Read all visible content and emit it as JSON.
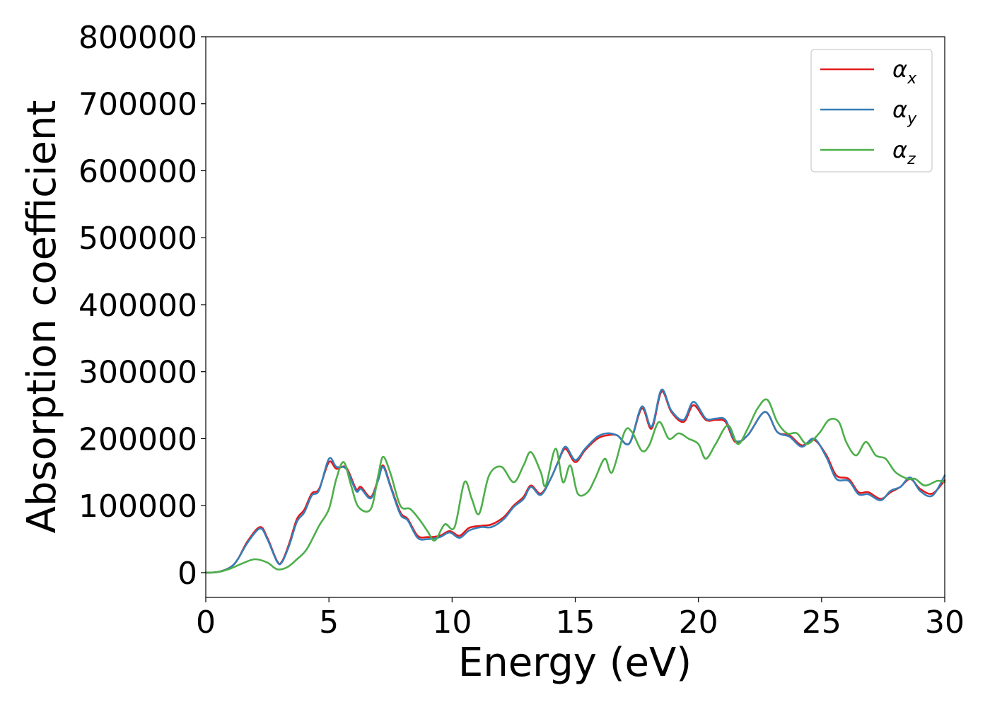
{
  "chart_data": {
    "type": "line",
    "title": "",
    "xlabel": "Energy (eV)",
    "ylabel": "Absorption coefficient",
    "xlim": [
      0,
      30
    ],
    "ylim": [
      -37000,
      800000
    ],
    "xticks": [
      0,
      5,
      10,
      15,
      20,
      25,
      30
    ],
    "xtick_labels": [
      "0",
      "5",
      "10",
      "15",
      "20",
      "25",
      "30"
    ],
    "yticks": [
      0,
      100000,
      200000,
      300000,
      400000,
      500000,
      600000,
      700000,
      800000
    ],
    "ytick_labels": [
      "0",
      "100000",
      "200000",
      "300000",
      "400000",
      "500000",
      "600000",
      "700000",
      "800000"
    ],
    "grid": false,
    "legend": {
      "position": "top-right"
    },
    "series": [
      {
        "name": "αx",
        "label_base": "α",
        "label_sub": "x",
        "color": "#e41a1c",
        "points": [
          [
            0,
            0
          ],
          [
            0.5,
            1000
          ],
          [
            1,
            8000
          ],
          [
            1.3,
            20000
          ],
          [
            1.7,
            47000
          ],
          [
            2.2,
            68000
          ],
          [
            2.5,
            52000
          ],
          [
            2.9,
            17000
          ],
          [
            3.1,
            17000
          ],
          [
            3.4,
            45000
          ],
          [
            3.7,
            80000
          ],
          [
            4.0,
            94000
          ],
          [
            4.3,
            118000
          ],
          [
            4.6,
            125000
          ],
          [
            5.0,
            165000
          ],
          [
            5.3,
            155000
          ],
          [
            5.7,
            157000
          ],
          [
            6.1,
            125000
          ],
          [
            6.3,
            128000
          ],
          [
            6.7,
            113000
          ],
          [
            7.0,
            140000
          ],
          [
            7.2,
            160000
          ],
          [
            7.5,
            130000
          ],
          [
            7.9,
            90000
          ],
          [
            8.2,
            80000
          ],
          [
            8.6,
            55000
          ],
          [
            9.0,
            53000
          ],
          [
            9.5,
            55000
          ],
          [
            9.9,
            62000
          ],
          [
            10.3,
            55000
          ],
          [
            10.7,
            67000
          ],
          [
            11.2,
            70000
          ],
          [
            11.6,
            72000
          ],
          [
            12.1,
            83000
          ],
          [
            12.5,
            100000
          ],
          [
            12.9,
            113000
          ],
          [
            13.2,
            130000
          ],
          [
            13.6,
            118000
          ],
          [
            14.0,
            140000
          ],
          [
            14.3,
            165000
          ],
          [
            14.6,
            185000
          ],
          [
            15.0,
            165000
          ],
          [
            15.4,
            183000
          ],
          [
            15.9,
            200000
          ],
          [
            16.3,
            205000
          ],
          [
            16.7,
            205000
          ],
          [
            17.2,
            193000
          ],
          [
            17.7,
            245000
          ],
          [
            18.1,
            215000
          ],
          [
            18.5,
            270000
          ],
          [
            18.9,
            240000
          ],
          [
            19.4,
            225000
          ],
          [
            19.8,
            250000
          ],
          [
            20.3,
            228000
          ],
          [
            20.7,
            228000
          ],
          [
            21.1,
            225000
          ],
          [
            21.5,
            195000
          ],
          [
            22.0,
            205000
          ],
          [
            22.7,
            240000
          ],
          [
            23.2,
            210000
          ],
          [
            23.7,
            205000
          ],
          [
            24.2,
            190000
          ],
          [
            24.7,
            198000
          ],
          [
            25.2,
            175000
          ],
          [
            25.6,
            145000
          ],
          [
            26.1,
            140000
          ],
          [
            26.5,
            120000
          ],
          [
            26.9,
            120000
          ],
          [
            27.4,
            110000
          ],
          [
            27.8,
            120000
          ],
          [
            28.2,
            128000
          ],
          [
            28.6,
            140000
          ],
          [
            29.0,
            125000
          ],
          [
            29.5,
            118000
          ],
          [
            30.0,
            138000
          ]
        ]
      },
      {
        "name": "αy",
        "label_base": "α",
        "label_sub": "y",
        "color": "#377eb8",
        "points": [
          [
            0,
            0
          ],
          [
            0.5,
            1000
          ],
          [
            1,
            8000
          ],
          [
            1.3,
            20000
          ],
          [
            1.7,
            45000
          ],
          [
            2.2,
            66000
          ],
          [
            2.5,
            50000
          ],
          [
            2.9,
            16000
          ],
          [
            3.1,
            16000
          ],
          [
            3.4,
            42000
          ],
          [
            3.7,
            76000
          ],
          [
            4.0,
            90000
          ],
          [
            4.3,
            115000
          ],
          [
            4.6,
            123000
          ],
          [
            5.0,
            170000
          ],
          [
            5.3,
            158000
          ],
          [
            5.7,
            155000
          ],
          [
            6.1,
            122000
          ],
          [
            6.3,
            125000
          ],
          [
            6.7,
            111000
          ],
          [
            7.0,
            138000
          ],
          [
            7.2,
            158000
          ],
          [
            7.5,
            128000
          ],
          [
            7.9,
            87000
          ],
          [
            8.2,
            78000
          ],
          [
            8.6,
            52000
          ],
          [
            9.0,
            50000
          ],
          [
            9.5,
            53000
          ],
          [
            9.9,
            60000
          ],
          [
            10.3,
            52000
          ],
          [
            10.7,
            63000
          ],
          [
            11.2,
            68000
          ],
          [
            11.6,
            68000
          ],
          [
            12.1,
            80000
          ],
          [
            12.5,
            98000
          ],
          [
            12.9,
            110000
          ],
          [
            13.2,
            128000
          ],
          [
            13.6,
            116000
          ],
          [
            14.0,
            140000
          ],
          [
            14.3,
            165000
          ],
          [
            14.6,
            188000
          ],
          [
            15.0,
            168000
          ],
          [
            15.4,
            185000
          ],
          [
            15.9,
            203000
          ],
          [
            16.3,
            208000
          ],
          [
            16.7,
            205000
          ],
          [
            17.2,
            193000
          ],
          [
            17.7,
            248000
          ],
          [
            18.1,
            218000
          ],
          [
            18.5,
            273000
          ],
          [
            18.9,
            242000
          ],
          [
            19.4,
            228000
          ],
          [
            19.8,
            255000
          ],
          [
            20.3,
            230000
          ],
          [
            20.7,
            230000
          ],
          [
            21.1,
            228000
          ],
          [
            21.5,
            197000
          ],
          [
            22.0,
            205000
          ],
          [
            22.7,
            240000
          ],
          [
            23.2,
            210000
          ],
          [
            23.7,
            203000
          ],
          [
            24.2,
            188000
          ],
          [
            24.7,
            200000
          ],
          [
            25.2,
            172000
          ],
          [
            25.6,
            140000
          ],
          [
            26.1,
            137000
          ],
          [
            26.5,
            117000
          ],
          [
            26.9,
            117000
          ],
          [
            27.4,
            108000
          ],
          [
            27.8,
            122000
          ],
          [
            28.2,
            128000
          ],
          [
            28.6,
            142000
          ],
          [
            29.0,
            122000
          ],
          [
            29.5,
            115000
          ],
          [
            30.0,
            145000
          ]
        ]
      },
      {
        "name": "αz",
        "label_base": "α",
        "label_sub": "z",
        "color": "#4daf4a",
        "points": [
          [
            0,
            0
          ],
          [
            0.5,
            1000
          ],
          [
            1,
            6000
          ],
          [
            1.5,
            14000
          ],
          [
            2.0,
            20000
          ],
          [
            2.5,
            15000
          ],
          [
            2.9,
            5000
          ],
          [
            3.3,
            8000
          ],
          [
            3.7,
            20000
          ],
          [
            4.1,
            35000
          ],
          [
            4.6,
            70000
          ],
          [
            5.0,
            95000
          ],
          [
            5.3,
            140000
          ],
          [
            5.6,
            165000
          ],
          [
            5.9,
            130000
          ],
          [
            6.2,
            98000
          ],
          [
            6.7,
            95000
          ],
          [
            7.0,
            145000
          ],
          [
            7.2,
            173000
          ],
          [
            7.5,
            148000
          ],
          [
            7.9,
            100000
          ],
          [
            8.3,
            95000
          ],
          [
            8.7,
            78000
          ],
          [
            9.0,
            62000
          ],
          [
            9.3,
            48000
          ],
          [
            9.7,
            72000
          ],
          [
            10.1,
            68000
          ],
          [
            10.5,
            135000
          ],
          [
            10.8,
            110000
          ],
          [
            11.1,
            88000
          ],
          [
            11.5,
            145000
          ],
          [
            12.0,
            158000
          ],
          [
            12.5,
            135000
          ],
          [
            12.9,
            160000
          ],
          [
            13.2,
            180000
          ],
          [
            13.6,
            150000
          ],
          [
            13.8,
            130000
          ],
          [
            14.2,
            185000
          ],
          [
            14.5,
            135000
          ],
          [
            14.8,
            160000
          ],
          [
            15.1,
            118000
          ],
          [
            15.5,
            120000
          ],
          [
            15.8,
            140000
          ],
          [
            16.2,
            170000
          ],
          [
            16.5,
            150000
          ],
          [
            17.0,
            210000
          ],
          [
            17.3,
            210000
          ],
          [
            17.7,
            182000
          ],
          [
            18.0,
            190000
          ],
          [
            18.4,
            225000
          ],
          [
            18.8,
            200000
          ],
          [
            19.2,
            208000
          ],
          [
            19.6,
            200000
          ],
          [
            20.0,
            192000
          ],
          [
            20.3,
            170000
          ],
          [
            20.7,
            192000
          ],
          [
            21.2,
            220000
          ],
          [
            21.6,
            192000
          ],
          [
            22.0,
            215000
          ],
          [
            22.4,
            245000
          ],
          [
            22.8,
            258000
          ],
          [
            23.2,
            225000
          ],
          [
            23.6,
            208000
          ],
          [
            24.0,
            208000
          ],
          [
            24.4,
            192000
          ],
          [
            24.9,
            208000
          ],
          [
            25.3,
            228000
          ],
          [
            25.7,
            225000
          ],
          [
            26.0,
            195000
          ],
          [
            26.4,
            175000
          ],
          [
            26.8,
            195000
          ],
          [
            27.2,
            175000
          ],
          [
            27.6,
            170000
          ],
          [
            28.0,
            150000
          ],
          [
            28.5,
            140000
          ],
          [
            28.8,
            140000
          ],
          [
            29.2,
            130000
          ],
          [
            29.7,
            137000
          ],
          [
            30.0,
            135000
          ]
        ]
      }
    ]
  }
}
